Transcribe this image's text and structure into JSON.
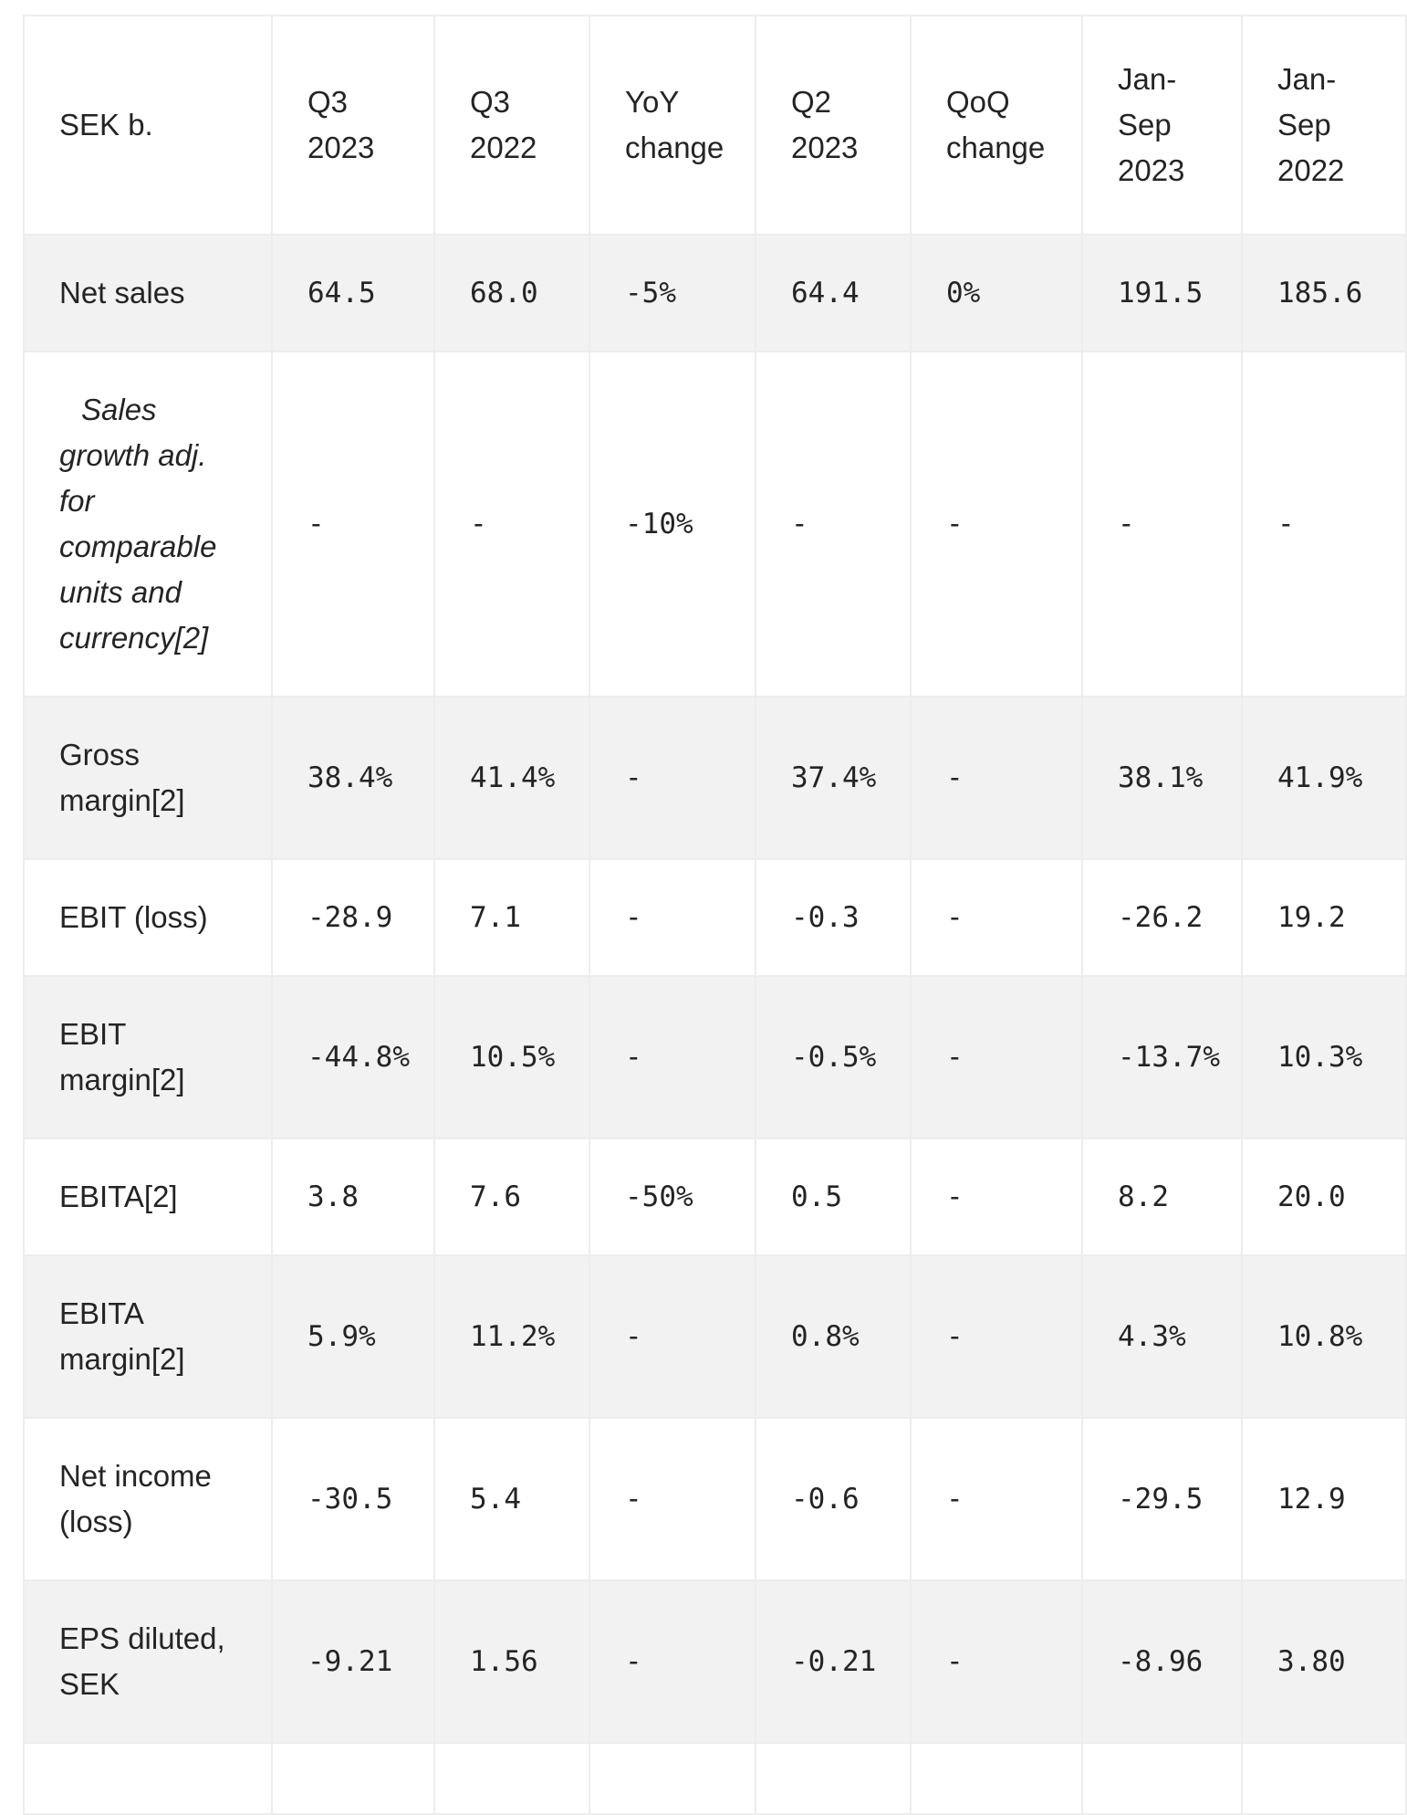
{
  "table": {
    "unit_label": "SEK b.",
    "columns": [
      "SEK b.",
      "Q3 2023",
      "Q3 2022",
      "YoY change",
      "Q2 2023",
      "QoQ change",
      "Jan-Sep 2023",
      "Jan-Sep 2022"
    ],
    "rows": [
      {
        "label": "Net sales",
        "italic": false,
        "values": [
          "64.5",
          "68.0",
          "-5%",
          "64.4",
          "0%",
          "191.5",
          "185.6"
        ]
      },
      {
        "label": "Sales growth adj. for comparable units and currency[2]",
        "italic": true,
        "values": [
          "-",
          "-",
          "-10%",
          "-",
          "-",
          "-",
          "-"
        ]
      },
      {
        "label": "Gross margin[2]",
        "italic": false,
        "values": [
          "38.4%",
          "41.4%",
          "-",
          "37.4%",
          "-",
          "38.1%",
          "41.9%"
        ]
      },
      {
        "label": "EBIT (loss)",
        "italic": false,
        "values": [
          "-28.9",
          "7.1",
          "-",
          "-0.3",
          "-",
          "-26.2",
          "19.2"
        ]
      },
      {
        "label": "EBIT margin[2]",
        "italic": false,
        "values": [
          "-44.8%",
          "10.5%",
          "-",
          "-0.5%",
          "-",
          "-13.7%",
          "10.3%"
        ]
      },
      {
        "label": "EBITA[2]",
        "italic": false,
        "values": [
          "3.8",
          "7.6",
          "-50%",
          "0.5",
          "-",
          "8.2",
          "20.0"
        ]
      },
      {
        "label": "EBITA margin[2]",
        "italic": false,
        "values": [
          "5.9%",
          "11.2%",
          "-",
          "0.8%",
          "-",
          "4.3%",
          "10.8%"
        ]
      },
      {
        "label": "Net income (loss)",
        "italic": false,
        "values": [
          "-30.5",
          "5.4",
          "-",
          "-0.6",
          "-",
          "-29.5",
          "12.9"
        ]
      },
      {
        "label": "EPS diluted, SEK",
        "italic": false,
        "values": [
          "-9.21",
          "1.56",
          "-",
          "-0.21",
          "-",
          "-8.96",
          "3.80"
        ]
      },
      {
        "label": "",
        "italic": false,
        "values": [
          "",
          "",
          "",
          "",
          "",
          "",
          ""
        ]
      }
    ],
    "colors": {
      "stripe_background": "#f2f2f2",
      "row_background": "#ffffff",
      "cell_border": "#ededed",
      "text": "#242424"
    }
  }
}
